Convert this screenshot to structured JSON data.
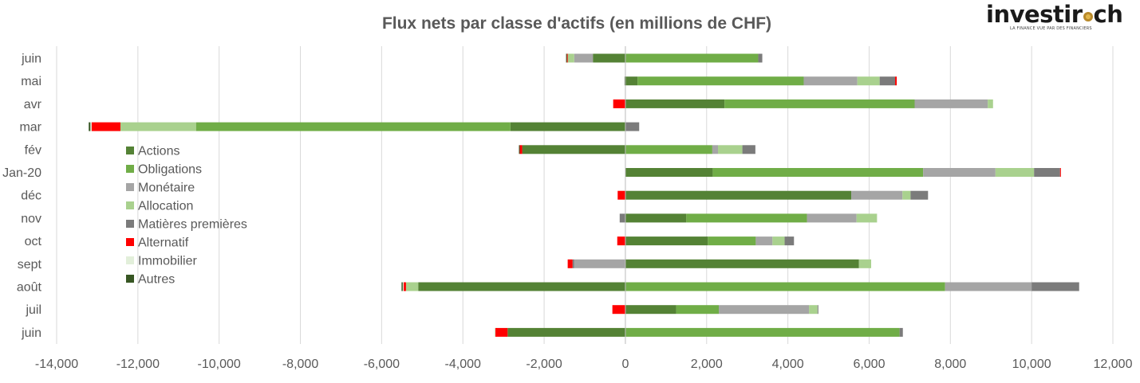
{
  "logo": {
    "text_left": "investir",
    "text_right": "ch",
    "tagline": "LA FINANCE VUE PAR DES FINANCIERS"
  },
  "colors": {
    "Actions": "#548235",
    "Obligations": "#70ad47",
    "Monétaire": "#a5a5a5",
    "Allocation": "#a9d18e",
    "Matières premières": "#7b7b7b",
    "Alternatif": "#ff0000",
    "Immobilier": "#e2efda",
    "Autres": "#375623"
  },
  "chart_data": {
    "type": "bar",
    "orientation": "horizontal",
    "stacked": true,
    "title": "Flux nets par classe d'actifs (en millions de CHF)",
    "xlabel": "",
    "ylabel": "",
    "xlim": [
      -14000,
      12000
    ],
    "x_ticks": [
      -14000,
      -12000,
      -10000,
      -8000,
      -6000,
      -4000,
      -2000,
      0,
      2000,
      4000,
      6000,
      8000,
      10000,
      12000
    ],
    "x_tick_labels": [
      "-14,000",
      "-12,000",
      "-10,000",
      "-8,000",
      "-6,000",
      "-4,000",
      "-2,000",
      "0",
      "2,000",
      "4,000",
      "6,000",
      "8,000",
      "10,000",
      "12,000"
    ],
    "grid": true,
    "legend_position": "left",
    "categories": [
      "juin",
      "juil",
      "août",
      "sept",
      "oct",
      "nov",
      "déc",
      "Jan-20",
      "fév",
      "mar",
      "avr",
      "mai",
      "juin"
    ],
    "series": [
      {
        "name": "Actions",
        "values": [
          -2900,
          1250,
          -5100,
          5750,
          2030,
          1500,
          5560,
          2150,
          -2540,
          -2830,
          2440,
          300,
          -800
        ]
      },
      {
        "name": "Obligations",
        "values": [
          6750,
          1050,
          7870,
          0,
          1180,
          2970,
          0,
          5180,
          2140,
          -7740,
          4680,
          4090,
          3270
        ]
      },
      {
        "name": "Monétaire",
        "values": [
          0,
          2220,
          2130,
          -1260,
          410,
          1220,
          1260,
          1780,
          140,
          0,
          1800,
          1320,
          -460
        ]
      },
      {
        "name": "Allocation",
        "values": [
          0,
          210,
          -300,
          300,
          300,
          500,
          200,
          950,
          600,
          -1860,
          130,
          550,
          -160
        ]
      },
      {
        "name": "Matières premières",
        "values": [
          80,
          20,
          1170,
          -40,
          230,
          -140,
          430,
          640,
          320,
          340,
          0,
          380,
          100
        ]
      },
      {
        "name": "Alternatif",
        "values": [
          -300,
          -320,
          -60,
          -120,
          -200,
          0,
          -190,
          20,
          -60,
          -710,
          -300,
          40,
          -20
        ]
      },
      {
        "name": "Immobilier",
        "values": [
          -30,
          0,
          -20,
          0,
          0,
          20,
          0,
          0,
          0,
          -30,
          0,
          0,
          0
        ]
      },
      {
        "name": "Autres",
        "values": [
          0,
          0,
          -30,
          0,
          0,
          0,
          0,
          0,
          -20,
          -40,
          0,
          -20,
          -20
        ]
      }
    ]
  }
}
